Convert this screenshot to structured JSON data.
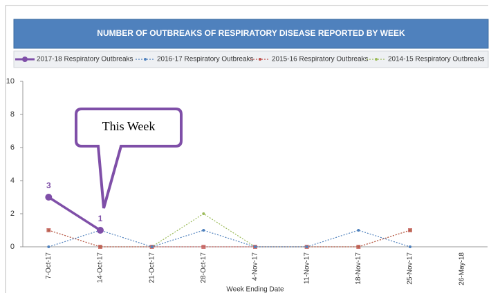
{
  "chart_data": {
    "type": "line",
    "title": "NUMBER OF OUTBREAKS OF RESPIRATORY DISEASE REPORTED BY WEEK",
    "x_label": "Week Ending Date",
    "annotation": "This Week",
    "categories": [
      "7-Oct-17",
      "14-Oct-17",
      "21-Oct-17",
      "28-Oct-17",
      "4-Nov-17",
      "11-Nov-17",
      "18-Nov-17",
      "25-Nov-17",
      "26-May-18"
    ],
    "series": [
      {
        "name": "2017-18 Respiratory Outbreaks",
        "color": "#7f4fa8",
        "values": [
          3,
          1,
          null,
          null,
          null,
          null,
          null,
          null,
          null
        ],
        "value_labels": [
          "3",
          "1",
          null,
          null,
          null,
          null,
          null,
          null,
          null
        ]
      },
      {
        "name": "2016-17 Respiratory Outbreaks",
        "color": "#4f81bd",
        "values": [
          0,
          1,
          0,
          1,
          0,
          0,
          1,
          0,
          null
        ]
      },
      {
        "name": "2015-16 Respiratory Outbreaks",
        "color": "#c0504d",
        "values": [
          1,
          0,
          0,
          0,
          0,
          0,
          0,
          1,
          null
        ]
      },
      {
        "name": "2014-15 Respiratory Outbreaks",
        "color": "#9bbb59",
        "values": [
          1,
          0,
          0,
          2,
          0,
          0,
          0,
          1,
          null
        ]
      }
    ],
    "ylim": [
      0,
      10
    ],
    "yticks": [
      0,
      2,
      4,
      6,
      8,
      10
    ],
    "grid": false,
    "legend": "top"
  }
}
